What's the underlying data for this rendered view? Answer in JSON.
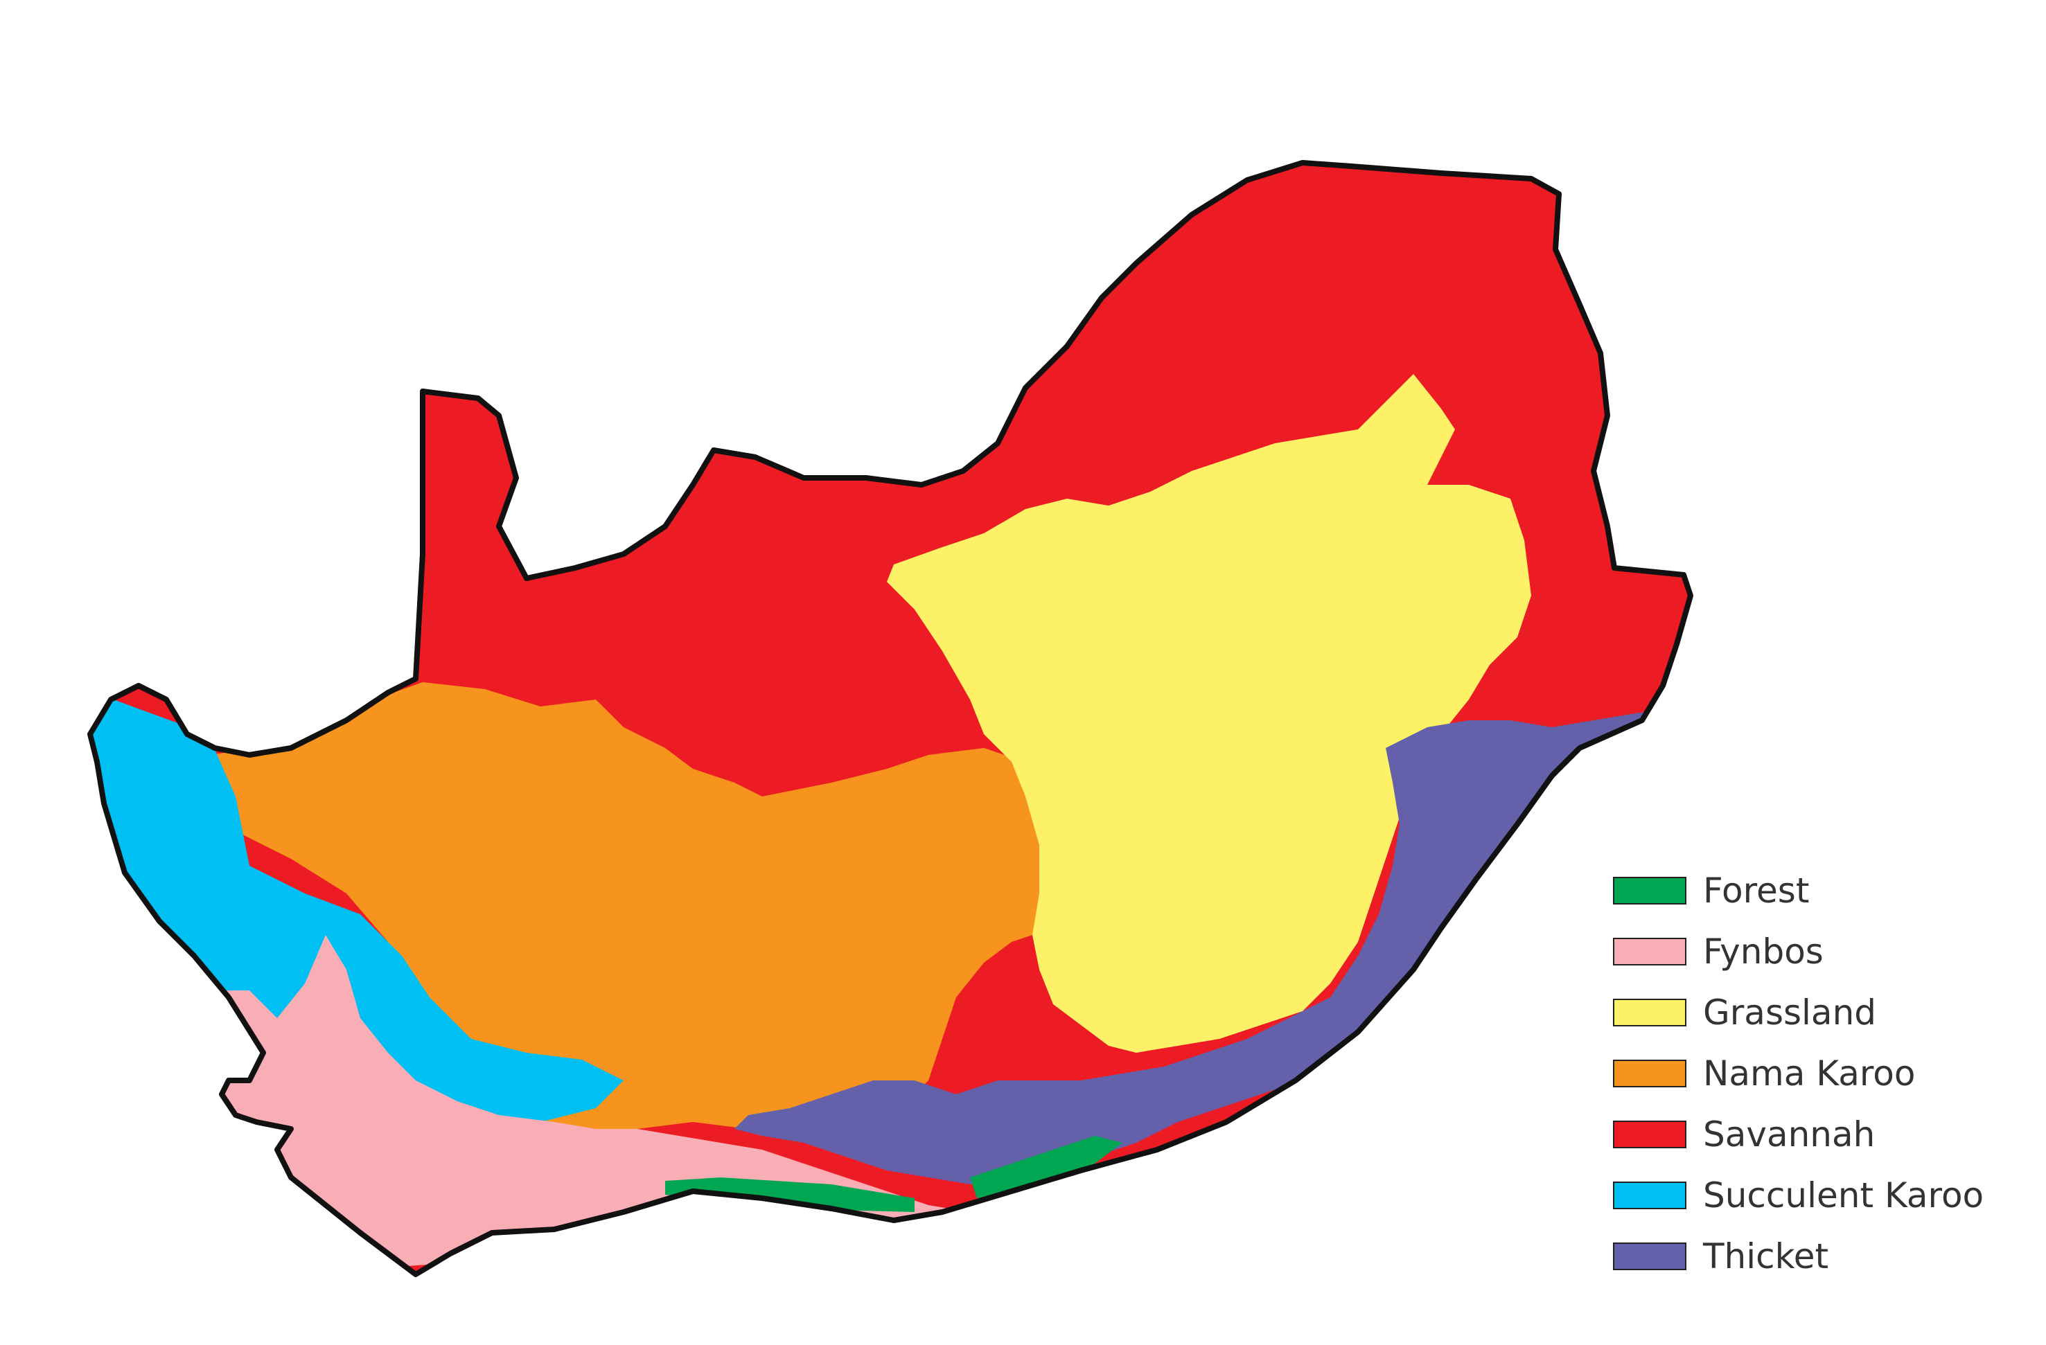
{
  "legend": {
    "items": [
      {
        "label": "Forest",
        "color": "#00a651"
      },
      {
        "label": "Fynbos",
        "color": "#f9aeb6"
      },
      {
        "label": "Grassland",
        "color": "#fdf267"
      },
      {
        "label": "Nama Karoo",
        "color": "#f7941d"
      },
      {
        "label": "Savannah",
        "color": "#ed1c24"
      },
      {
        "label": "Succulent Karoo",
        "color": "#00bff3"
      },
      {
        "label": "Thicket",
        "color": "#6460aa"
      }
    ]
  },
  "colors": {
    "outline": "#111111",
    "background": "#ffffff"
  }
}
